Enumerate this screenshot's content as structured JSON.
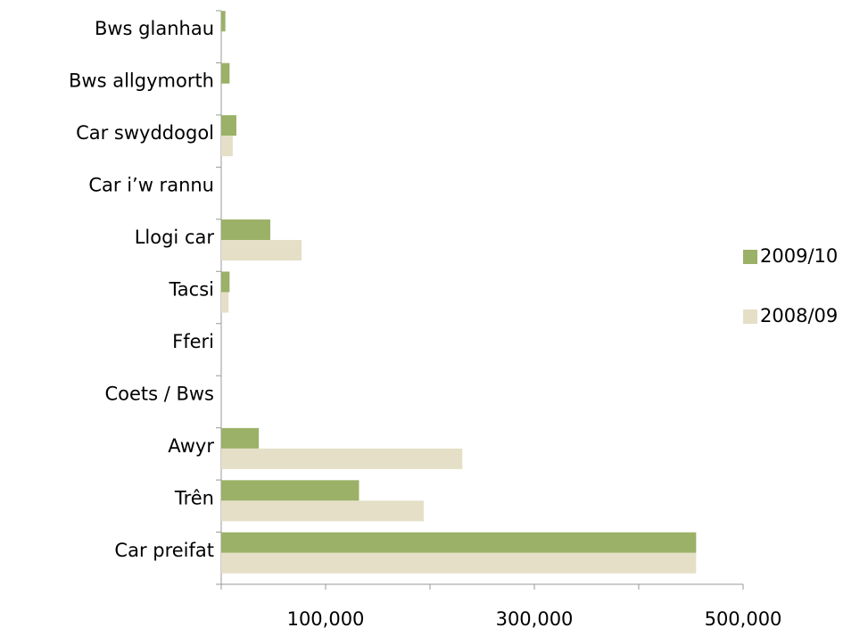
{
  "chart_data": {
    "type": "bar",
    "orientation": "horizontal",
    "categories": [
      "Bws glanhau",
      "Bws allgymorth",
      "Car swyddogol",
      "Car i’w rannu",
      "Llogi car",
      "Tacsi",
      "Fferi",
      "Coets / Bws",
      "Awyr",
      "Trên",
      "Car preifat"
    ],
    "series": [
      {
        "name": "2009/10",
        "color": "#9bb167",
        "values": [
          4000,
          8000,
          14500,
          0,
          47000,
          8000,
          0,
          0,
          36000,
          132000,
          455000
        ]
      },
      {
        "name": "2008/09",
        "color": "#e4dfc6",
        "values": [
          0,
          0,
          11000,
          0,
          77000,
          7000,
          0,
          0,
          231000,
          194000,
          455000
        ]
      }
    ],
    "xlim": [
      0,
      500000
    ],
    "xticks": [
      {
        "value": 100000,
        "label": "100,000"
      },
      {
        "value": 300000,
        "label": "300,000"
      },
      {
        "value": 500000,
        "label": "500,000"
      }
    ],
    "xticks_minor": [
      0,
      200000,
      400000
    ],
    "legend": "right"
  }
}
